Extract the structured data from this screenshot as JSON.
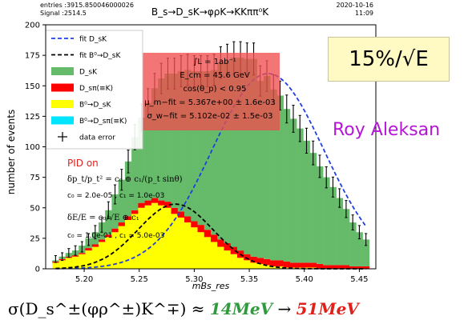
{
  "header": {
    "stats_line1": "entries :3915.850046000026",
    "stats_line2": "Signal :2514.5",
    "title": "B_s→D_sK→φρK→KKππ⁰K",
    "date": "2020-10-16",
    "time": "11:09"
  },
  "callout": {
    "text": "15%/√E",
    "bg_color": "#fff9c4"
  },
  "author": {
    "text": "Roy Aleksan",
    "color": "#b516d6"
  },
  "formula": {
    "lhs": "σ(D_s^±(φρ^±)K^∓) ≈ ",
    "val1": "14MeV",
    "arrow": " → ",
    "val2": "51MeV"
  },
  "fit_box": {
    "lines": [
      "∫L = 1ab⁻¹",
      "E_cm = 45.6 GeV",
      "cos(θ_p) < 0.95",
      "μ_m−fit = 5.367e+00 ± 1.6e-03",
      "σ_w−fit = 5.102e-02 ± 1.5e-03"
    ],
    "color": "#f04e4e"
  },
  "pid_box": {
    "title": "PID on",
    "res_p": "δp_t/p_t² = c₀ ⊕ c₁/(p_t sinθ)",
    "consts_p": "c₀ = 2.0e-05 , c₁ = 1.0e-03",
    "res_e": "δE/E = c₀/√E ⊕ c₁",
    "consts_e": "c₀ = 1.0e-01 , c₁ = 5.0e-03"
  },
  "chart_data": {
    "type": "bar",
    "xlabel": "mBs_res",
    "ylabel": "number of events",
    "xlim": [
      5.165,
      5.465
    ],
    "ylim": [
      0,
      200
    ],
    "xticks": [
      5.2,
      5.25,
      5.3,
      5.35,
      5.4,
      5.45
    ],
    "yticks": [
      0,
      25,
      50,
      75,
      100,
      125,
      150,
      175,
      200
    ],
    "bin_width": 0.006,
    "bin_centers": [
      5.174,
      5.18,
      5.186,
      5.192,
      5.198,
      5.204,
      5.21,
      5.216,
      5.222,
      5.228,
      5.234,
      5.24,
      5.246,
      5.252,
      5.258,
      5.264,
      5.27,
      5.276,
      5.282,
      5.288,
      5.294,
      5.3,
      5.306,
      5.312,
      5.318,
      5.324,
      5.33,
      5.336,
      5.342,
      5.348,
      5.354,
      5.36,
      5.366,
      5.372,
      5.378,
      5.384,
      5.39,
      5.396,
      5.402,
      5.408,
      5.414,
      5.42,
      5.426,
      5.432,
      5.438,
      5.444,
      5.45,
      5.456
    ],
    "stack": [
      {
        "name": "B⁰→D_sK",
        "color": "#ffff00",
        "values": [
          5,
          7,
          9,
          10,
          12,
          15,
          18,
          22,
          26,
          30,
          35,
          40,
          45,
          50,
          52,
          54,
          52,
          50,
          45,
          42,
          38,
          34,
          30,
          26,
          22,
          18,
          15,
          12,
          9,
          7,
          5,
          4,
          3,
          2,
          2,
          1,
          1,
          1,
          1,
          1,
          0,
          0,
          0,
          0,
          0,
          0,
          0,
          0
        ]
      },
      {
        "name": "D_sπ(≡K)",
        "color": "#ff0000",
        "values": [
          1,
          1,
          1,
          1,
          1,
          2,
          2,
          2,
          2,
          3,
          3,
          3,
          3,
          4,
          4,
          4,
          4,
          5,
          5,
          5,
          5,
          5,
          6,
          6,
          6,
          6,
          6,
          6,
          6,
          5,
          5,
          5,
          5,
          5,
          5,
          5,
          4,
          4,
          4,
          4,
          4,
          3,
          3,
          3,
          3,
          2,
          2,
          2
        ]
      },
      {
        "name": "D_sK",
        "color": "#66bb6a",
        "values": [
          1,
          2,
          3,
          4,
          6,
          8,
          10,
          14,
          20,
          28,
          35,
          45,
          60,
          70,
          80,
          90,
          100,
          105,
          110,
          115,
          120,
          123,
          126,
          130,
          135,
          145,
          150,
          155,
          158,
          160,
          162,
          145,
          150,
          140,
          135,
          125,
          118,
          110,
          100,
          90,
          80,
          72,
          64,
          55,
          46,
          36,
          28,
          22
        ]
      },
      {
        "name": "B⁰→D_sπ(≡K)",
        "color": "#00e5ff",
        "values": [
          0,
          0,
          0,
          0,
          0,
          0,
          0,
          0,
          0,
          0,
          0,
          0,
          0,
          0,
          0,
          0,
          0,
          0,
          0,
          0,
          0,
          0,
          0,
          0,
          0,
          0,
          0,
          0,
          0,
          0,
          0,
          0,
          0,
          0,
          0,
          0,
          0,
          0,
          0,
          0,
          0,
          0,
          0,
          0,
          0,
          0,
          0,
          0
        ]
      }
    ],
    "total_counts": [
      8,
      10,
      13,
      15,
      18,
      24,
      30,
      36,
      48,
      61,
      73,
      88,
      108,
      124,
      136,
      148,
      156,
      160,
      160,
      162,
      163,
      162,
      162,
      162,
      163,
      169,
      171,
      173,
      173,
      172,
      172,
      154,
      158,
      147,
      142,
      131,
      123,
      115,
      105,
      95,
      84,
      75,
      67,
      58,
      49,
      38,
      30,
      24
    ],
    "fits": [
      {
        "name": "fit D_sK",
        "color": "#1f3fe0",
        "dash": "dashed",
        "mean": 5.367,
        "sigma": 0.051,
        "amplitude": 160
      },
      {
        "name": "fit B⁰→D_sK",
        "color": "#000000",
        "dash": "dashed",
        "mean": 5.283,
        "sigma": 0.034,
        "amplitude": 53
      }
    ],
    "legend": {
      "placement": "top-left",
      "entries": [
        {
          "label": "fit D_sK",
          "kind": "line",
          "color": "#1f3fe0"
        },
        {
          "label": "fit B⁰→D_sK",
          "kind": "line",
          "color": "#000000"
        },
        {
          "label": "D_sK",
          "kind": "patch",
          "color": "#66bb6a"
        },
        {
          "label": "D_sπ(≡K)",
          "kind": "patch",
          "color": "#ff0000"
        },
        {
          "label": "B⁰→D_sK",
          "kind": "patch",
          "color": "#ffff00"
        },
        {
          "label": "B⁰→D_sπ(≡K)",
          "kind": "patch",
          "color": "#00e5ff"
        },
        {
          "label": "data error",
          "kind": "errorbar",
          "color": "#000000"
        }
      ]
    }
  }
}
